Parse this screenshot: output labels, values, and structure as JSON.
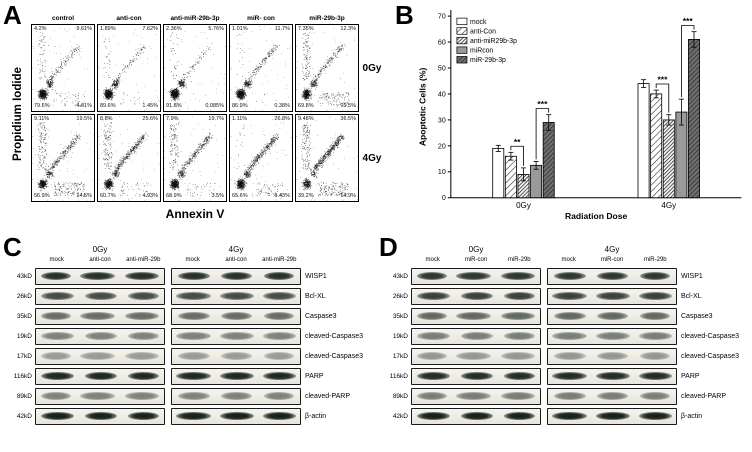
{
  "panels": {
    "A": {
      "label": "A",
      "y_axis": "Propidium Iodide",
      "x_axis": "Annexin V",
      "row_labels": [
        "0Gy",
        "4Gy"
      ],
      "column_labels": [
        "control",
        "anti-con",
        "anti-miR-29b-3p",
        "miR- con",
        "miR-29b-3p"
      ],
      "plots": [
        {
          "row": "0Gy",
          "column": "control",
          "quadrants": {
            "ul": "4.2%",
            "ur": "9.61%",
            "ll": "79.6%",
            "lr": "4.61%"
          }
        },
        {
          "row": "0Gy",
          "column": "anti-con",
          "quadrants": {
            "ul": "1.89%",
            "ur": "7.62%",
            "ll": "89.6%",
            "lr": "1.45%"
          }
        },
        {
          "row": "0Gy",
          "column": "anti-miR-29b-3p",
          "quadrants": {
            "ul": "2.36%",
            "ur": "5.76%",
            "ll": "91.8%",
            "lr": "0.085%"
          }
        },
        {
          "row": "0Gy",
          "column": "miR- con",
          "quadrants": {
            "ul": "1.01%",
            "ur": "11.7%",
            "ll": "86.9%",
            "lr": "0.38%"
          }
        },
        {
          "row": "0Gy",
          "column": "miR-29b-3p",
          "quadrants": {
            "ul": "7.35%",
            "ur": "12.3%",
            "ll": "69.8%",
            "lr": "10.5%"
          }
        },
        {
          "row": "4Gy",
          "column": "control",
          "quadrants": {
            "ul": "9.11%",
            "ur": "19.5%",
            "ll": "56.9%",
            "lr": "14.5%"
          }
        },
        {
          "row": "4Gy",
          "column": "anti-con",
          "quadrants": {
            "ul": "8.8%",
            "ur": "25.6%",
            "ll": "60.7%",
            "lr": "4.93%"
          }
        },
        {
          "row": "4Gy",
          "column": "anti-miR-29b-3p",
          "quadrants": {
            "ul": "7.9%",
            "ur": "19.7%",
            "ll": "68.9%",
            "lr": "3.5%"
          }
        },
        {
          "row": "4Gy",
          "column": "miR- con",
          "quadrants": {
            "ul": "1.11%",
            "ur": "26.8%",
            "ll": "65.6%",
            "lr": "6.43%"
          }
        },
        {
          "row": "4Gy",
          "column": "miR-29b-3p",
          "quadrants": {
            "ul": "9.48%",
            "ur": "36.5%",
            "ll": "39.2%",
            "lr": "14.9%"
          }
        }
      ]
    },
    "B": {
      "label": "B"
    },
    "C": {
      "label": "C",
      "groups": [
        {
          "dose": "0Gy",
          "lanes": [
            "mock",
            "anti-con",
            "anti-miR-29b"
          ]
        },
        {
          "dose": "4Gy",
          "lanes": [
            "mock",
            "anti-con",
            "anti-miR-29b"
          ]
        }
      ],
      "rows": [
        {
          "mw": "43kD",
          "protein": "WISP1",
          "intensity": 0.88
        },
        {
          "mw": "26kD",
          "protein": "Bcl-XL",
          "intensity": 0.75
        },
        {
          "mw": "35kD",
          "protein": "Caspase3",
          "intensity": 0.6
        },
        {
          "mw": "19kD",
          "protein": "cleaved-Caspase3",
          "intensity": 0.5
        },
        {
          "mw": "17kD",
          "protein": "cleaved-Caspase3",
          "intensity": 0.38
        },
        {
          "mw": "116kD",
          "protein": "PARP",
          "intensity": 0.92
        },
        {
          "mw": "89kD",
          "protein": "cleaved-PARP",
          "intensity": 0.5
        },
        {
          "mw": "42kD",
          "protein": "β-actin",
          "intensity": 0.95
        }
      ]
    },
    "D": {
      "label": "D",
      "groups": [
        {
          "dose": "0Gy",
          "lanes": [
            "mock",
            "miR-con",
            "miR-29b"
          ]
        },
        {
          "dose": "4Gy",
          "lanes": [
            "mock",
            "miR-con",
            "miR-29b"
          ]
        }
      ],
      "rows": [
        {
          "mw": "43kD",
          "protein": "WISP1",
          "intensity": 0.85
        },
        {
          "mw": "26kD",
          "protein": "Bcl-XL",
          "intensity": 0.8
        },
        {
          "mw": "35kD",
          "protein": "Caspase3",
          "intensity": 0.62
        },
        {
          "mw": "19kD",
          "protein": "cleaved-Caspase3",
          "intensity": 0.52
        },
        {
          "mw": "17kD",
          "protein": "cleaved-Caspase3",
          "intensity": 0.4
        },
        {
          "mw": "116kD",
          "protein": "PARP",
          "intensity": 0.9
        },
        {
          "mw": "89kD",
          "protein": "cleaved-PARP",
          "intensity": 0.52
        },
        {
          "mw": "42kD",
          "protein": "β-actin",
          "intensity": 0.95
        }
      ]
    }
  },
  "chart_data": {
    "type": "bar",
    "title": "",
    "categories": [
      "0Gy",
      "4Gy"
    ],
    "series": [
      {
        "name": "mock",
        "values": [
          19,
          44
        ],
        "errors": [
          1.2,
          1.5
        ],
        "fill": "white"
      },
      {
        "name": "anti-Con",
        "values": [
          16,
          40
        ],
        "errors": [
          1.5,
          1.5
        ],
        "fill": "diagonal-hatch"
      },
      {
        "name": "anti-miR29b-3p",
        "values": [
          9,
          30
        ],
        "errors": [
          2.5,
          2
        ],
        "fill": "dense-hatch"
      },
      {
        "name": "miRcon",
        "values": [
          12.5,
          33
        ],
        "errors": [
          1.5,
          5
        ],
        "fill": "gray"
      },
      {
        "name": "miR-29b-3p",
        "values": [
          29,
          61
        ],
        "errors": [
          3,
          3
        ],
        "fill": "dark-hatch"
      }
    ],
    "xlabel": "Radiation Dose",
    "ylabel": "Apoptotic Cells (%)",
    "ylim": [
      0,
      70
    ],
    "yticks": [
      0,
      10,
      20,
      30,
      40,
      50,
      60,
      70
    ],
    "legend_position": "top-left",
    "grid": false,
    "significance": [
      {
        "category_index": 0,
        "series_a": 1,
        "series_b": 2,
        "label": "**"
      },
      {
        "category_index": 0,
        "series_a": 3,
        "series_b": 4,
        "label": "***"
      },
      {
        "category_index": 1,
        "series_a": 1,
        "series_b": 2,
        "label": "***"
      },
      {
        "category_index": 1,
        "series_a": 3,
        "series_b": 4,
        "label": "***"
      }
    ]
  }
}
